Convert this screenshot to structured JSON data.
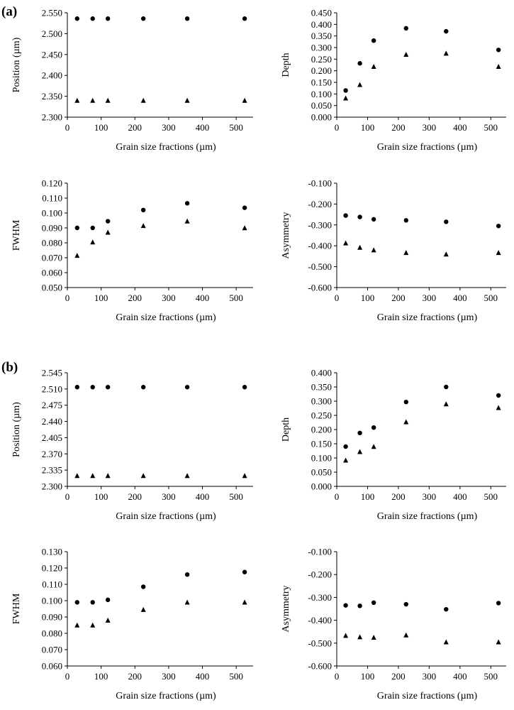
{
  "figure": {
    "panel_labels": [
      "(a)",
      "(b)"
    ]
  },
  "chart_data": [
    {
      "id": "a-position",
      "panel": "(a)",
      "type": "scatter",
      "xlabel": "Grain size fractions (µm)",
      "ylabel": "Position (µm)",
      "xlim": [
        0,
        550
      ],
      "ylim": [
        2.3,
        2.55
      ],
      "xticks": [
        0,
        100,
        200,
        300,
        400,
        500
      ],
      "yticks": [
        2.3,
        2.35,
        2.4,
        2.45,
        2.5,
        2.55
      ],
      "xtick_labels": [
        "0",
        "100",
        "200",
        "300",
        "400",
        "500"
      ],
      "ytick_labels": [
        "2.300",
        "2.350",
        "2.400",
        "2.450",
        "2.500",
        "2.550"
      ],
      "x": [
        29,
        75,
        120,
        225,
        355,
        525
      ],
      "series": [
        {
          "name": "circle",
          "marker": "circle",
          "values": [
            2.536,
            2.536,
            2.536,
            2.536,
            2.536,
            2.536
          ]
        },
        {
          "name": "triangle",
          "marker": "triangle",
          "values": [
            2.34,
            2.34,
            2.34,
            2.34,
            2.34,
            2.34
          ]
        }
      ]
    },
    {
      "id": "a-depth",
      "panel": "(a)",
      "type": "scatter",
      "xlabel": "Grain size fractions (µm)",
      "ylabel": "Depth",
      "xlim": [
        0,
        550
      ],
      "ylim": [
        0,
        0.45
      ],
      "xticks": [
        0,
        100,
        200,
        300,
        400,
        500
      ],
      "yticks": [
        0,
        0.05,
        0.1,
        0.15,
        0.2,
        0.25,
        0.3,
        0.35,
        0.4,
        0.45
      ],
      "xtick_labels": [
        "0",
        "100",
        "200",
        "300",
        "400",
        "500"
      ],
      "ytick_labels": [
        "0.000",
        "0.050",
        "0.100",
        "0.150",
        "0.200",
        "0.250",
        "0.300",
        "0.350",
        "0.400",
        "0.450"
      ],
      "x": [
        29,
        75,
        120,
        225,
        355,
        525
      ],
      "series": [
        {
          "name": "circle",
          "marker": "circle",
          "values": [
            0.115,
            0.232,
            0.33,
            0.383,
            0.37,
            0.29
          ]
        },
        {
          "name": "triangle",
          "marker": "triangle",
          "values": [
            0.082,
            0.14,
            0.218,
            0.27,
            0.275,
            0.218
          ]
        }
      ]
    },
    {
      "id": "a-fwhm",
      "panel": "(a)",
      "type": "scatter",
      "xlabel": "Grain size fractions (µm)",
      "ylabel": "FWHM",
      "xlim": [
        0,
        550
      ],
      "ylim": [
        0.05,
        0.12
      ],
      "xticks": [
        0,
        100,
        200,
        300,
        400,
        500
      ],
      "yticks": [
        0.05,
        0.06,
        0.07,
        0.08,
        0.09,
        0.1,
        0.11,
        0.12
      ],
      "xtick_labels": [
        "0",
        "100",
        "200",
        "300",
        "400",
        "500"
      ],
      "ytick_labels": [
        "0.050",
        "0.060",
        "0.070",
        "0.080",
        "0.090",
        "0.100",
        "0.110",
        "0.120"
      ],
      "x": [
        29,
        75,
        120,
        225,
        355,
        525
      ],
      "series": [
        {
          "name": "circle",
          "marker": "circle",
          "values": [
            0.09,
            0.09,
            0.0945,
            0.102,
            0.1065,
            0.1035
          ]
        },
        {
          "name": "triangle",
          "marker": "triangle",
          "values": [
            0.0715,
            0.0805,
            0.087,
            0.0915,
            0.0945,
            0.09
          ]
        }
      ]
    },
    {
      "id": "a-asymmetry",
      "panel": "(a)",
      "type": "scatter",
      "xlabel": "Grain size fractions (µm)",
      "ylabel": "Asymmetry",
      "xlim": [
        0,
        550
      ],
      "ylim": [
        -0.6,
        -0.1
      ],
      "xticks": [
        0,
        100,
        200,
        300,
        400,
        500
      ],
      "yticks": [
        -0.6,
        -0.5,
        -0.4,
        -0.3,
        -0.2,
        -0.1
      ],
      "xtick_labels": [
        "0",
        "100",
        "200",
        "300",
        "400",
        "500"
      ],
      "ytick_labels": [
        "-0.600",
        "-0.500",
        "-0.400",
        "-0.300",
        "-0.200",
        "-0.100"
      ],
      "x": [
        29,
        75,
        120,
        225,
        355,
        525
      ],
      "series": [
        {
          "name": "circle",
          "marker": "circle",
          "values": [
            -0.255,
            -0.262,
            -0.273,
            -0.278,
            -0.285,
            -0.305
          ]
        },
        {
          "name": "triangle",
          "marker": "triangle",
          "values": [
            -0.387,
            -0.408,
            -0.42,
            -0.433,
            -0.44,
            -0.433
          ]
        }
      ]
    },
    {
      "id": "b-position",
      "panel": "(b)",
      "type": "scatter",
      "xlabel": "Grain size fractions (µm)",
      "ylabel": "Position (µm)",
      "xlim": [
        0,
        550
      ],
      "ylim": [
        2.3,
        2.545
      ],
      "xticks": [
        0,
        100,
        200,
        300,
        400,
        500
      ],
      "yticks": [
        2.3,
        2.335,
        2.37,
        2.405,
        2.44,
        2.475,
        2.51,
        2.545
      ],
      "xtick_labels": [
        "0",
        "100",
        "200",
        "300",
        "400",
        "500"
      ],
      "ytick_labels": [
        "2.300",
        "2.335",
        "2.370",
        "2.405",
        "2.440",
        "2.475",
        "2.510",
        "2.545"
      ],
      "x": [
        29,
        75,
        120,
        225,
        355,
        525
      ],
      "series": [
        {
          "name": "circle",
          "marker": "circle",
          "values": [
            2.514,
            2.514,
            2.514,
            2.514,
            2.514,
            2.514
          ]
        },
        {
          "name": "triangle",
          "marker": "triangle",
          "values": [
            2.323,
            2.323,
            2.323,
            2.323,
            2.323,
            2.323
          ]
        }
      ]
    },
    {
      "id": "b-depth",
      "panel": "(b)",
      "type": "scatter",
      "xlabel": "Grain size fractions (µm)",
      "ylabel": "Depth",
      "xlim": [
        0,
        550
      ],
      "ylim": [
        0,
        0.4
      ],
      "xticks": [
        0,
        100,
        200,
        300,
        400,
        500
      ],
      "yticks": [
        0,
        0.05,
        0.1,
        0.15,
        0.2,
        0.25,
        0.3,
        0.35,
        0.4
      ],
      "xtick_labels": [
        "0",
        "100",
        "200",
        "300",
        "400",
        "500"
      ],
      "ytick_labels": [
        "0.000",
        "0.050",
        "0.100",
        "0.150",
        "0.200",
        "0.250",
        "0.300",
        "0.350",
        "0.400"
      ],
      "x": [
        29,
        75,
        120,
        225,
        355,
        525
      ],
      "series": [
        {
          "name": "circle",
          "marker": "circle",
          "values": [
            0.14,
            0.188,
            0.207,
            0.297,
            0.35,
            0.32
          ]
        },
        {
          "name": "triangle",
          "marker": "triangle",
          "values": [
            0.092,
            0.122,
            0.14,
            0.227,
            0.29,
            0.277
          ]
        }
      ]
    },
    {
      "id": "b-fwhm",
      "panel": "(b)",
      "type": "scatter",
      "xlabel": "Grain size fractions (µm)",
      "ylabel": "FWHM",
      "xlim": [
        0,
        550
      ],
      "ylim": [
        0.06,
        0.13
      ],
      "xticks": [
        0,
        100,
        200,
        300,
        400,
        500
      ],
      "yticks": [
        0.06,
        0.07,
        0.08,
        0.09,
        0.1,
        0.11,
        0.12,
        0.13
      ],
      "xtick_labels": [
        "0",
        "100",
        "200",
        "300",
        "400",
        "500"
      ],
      "ytick_labels": [
        "0.060",
        "0.070",
        "0.080",
        "0.090",
        "0.100",
        "0.110",
        "0.120",
        "0.130"
      ],
      "x": [
        29,
        75,
        120,
        225,
        355,
        525
      ],
      "series": [
        {
          "name": "circle",
          "marker": "circle",
          "values": [
            0.099,
            0.099,
            0.1005,
            0.1085,
            0.116,
            0.1175
          ]
        },
        {
          "name": "triangle",
          "marker": "triangle",
          "values": [
            0.085,
            0.085,
            0.088,
            0.0945,
            0.099,
            0.099
          ]
        }
      ]
    },
    {
      "id": "b-asymmetry",
      "panel": "(b)",
      "type": "scatter",
      "xlabel": "Grain size fractions (µm)",
      "ylabel": "Asymmetry",
      "xlim": [
        0,
        550
      ],
      "ylim": [
        -0.6,
        -0.1
      ],
      "xticks": [
        0,
        100,
        200,
        300,
        400,
        500
      ],
      "yticks": [
        -0.6,
        -0.5,
        -0.4,
        -0.3,
        -0.2,
        -0.1
      ],
      "xtick_labels": [
        "0",
        "100",
        "200",
        "300",
        "400",
        "500"
      ],
      "ytick_labels": [
        "-0.600",
        "-0.500",
        "-0.400",
        "-0.300",
        "-0.200",
        "-0.100"
      ],
      "x": [
        29,
        75,
        120,
        225,
        355,
        525
      ],
      "series": [
        {
          "name": "circle",
          "marker": "circle",
          "values": [
            -0.335,
            -0.337,
            -0.323,
            -0.33,
            -0.352,
            -0.325
          ]
        },
        {
          "name": "triangle",
          "marker": "triangle",
          "values": [
            -0.467,
            -0.473,
            -0.475,
            -0.465,
            -0.495,
            -0.495
          ]
        }
      ]
    }
  ]
}
